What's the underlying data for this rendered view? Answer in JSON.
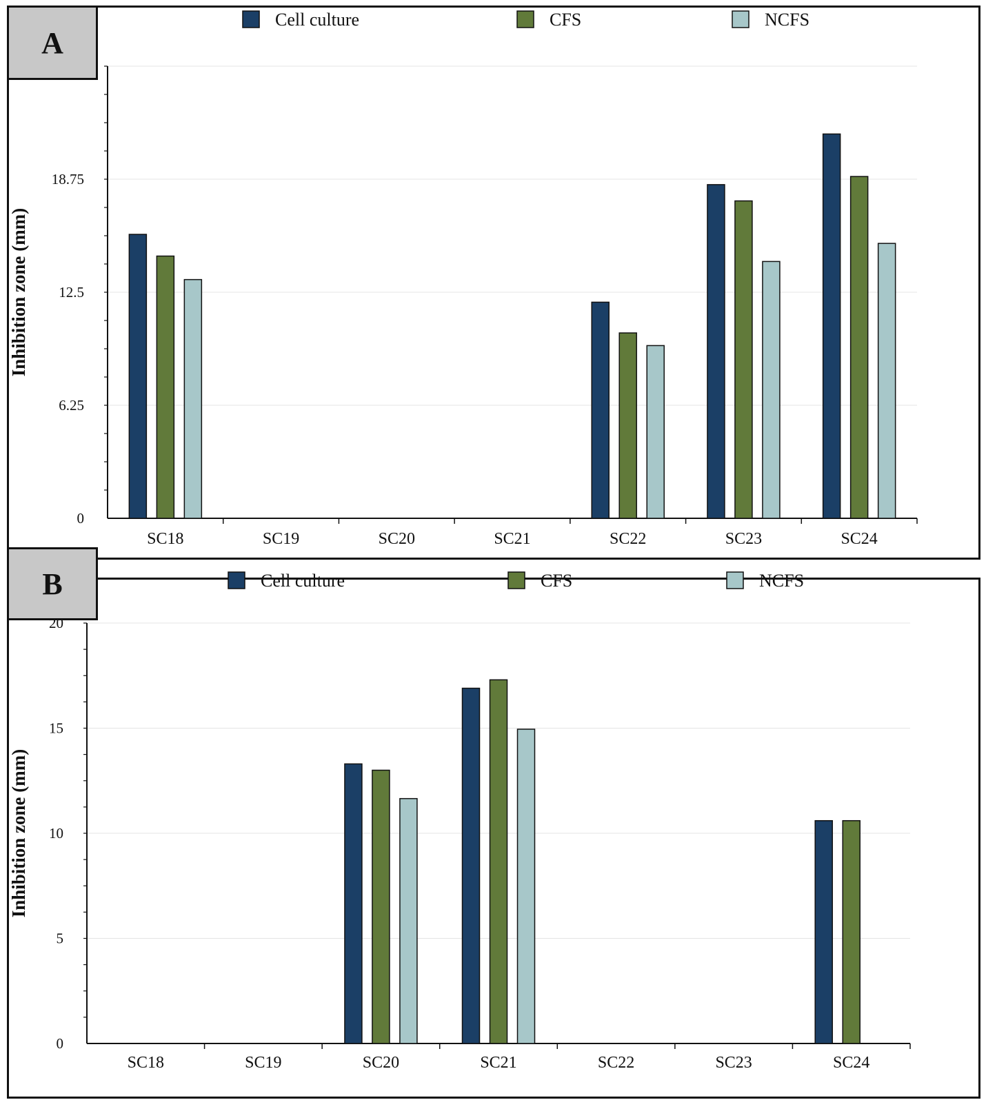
{
  "panels": {
    "a": {
      "tag": "A"
    },
    "b": {
      "tag": "B"
    }
  },
  "colors": {
    "Cell culture": "#1b3f66",
    "CFS": "#617a3a",
    "NCFS": "#a7c7c9"
  },
  "chart_data": [
    {
      "type": "bar",
      "panel": "A",
      "categories": [
        "SC18",
        "SC19",
        "SC20",
        "SC21",
        "SC22",
        "SC23",
        "SC24"
      ],
      "series": [
        {
          "name": "Cell culture",
          "values": [
            15.7,
            0,
            0,
            0,
            11.95,
            18.45,
            21.25
          ]
        },
        {
          "name": "CFS",
          "values": [
            14.5,
            0,
            0,
            0,
            10.25,
            17.55,
            18.9
          ]
        },
        {
          "name": "NCFS",
          "values": [
            13.2,
            0,
            0,
            0,
            9.55,
            14.2,
            15.2
          ]
        }
      ],
      "ylabel": "Inhibition zone (mm)",
      "xlabel": "",
      "ylim": [
        0,
        25
      ],
      "yticks": [
        0,
        6.25,
        12.5,
        18.75
      ],
      "ytick_labels": [
        "0",
        "6.25",
        "12.5",
        "18.75"
      ],
      "grid": true,
      "legend": "top"
    },
    {
      "type": "bar",
      "panel": "B",
      "categories": [
        "SC18",
        "SC19",
        "SC20",
        "SC21",
        "SC22",
        "SC23",
        "SC24"
      ],
      "series": [
        {
          "name": "Cell culture",
          "values": [
            0,
            0,
            13.3,
            16.9,
            0,
            0,
            10.6
          ]
        },
        {
          "name": "CFS",
          "values": [
            0,
            0,
            13.0,
            17.3,
            0,
            0,
            10.6
          ]
        },
        {
          "name": "NCFS",
          "values": [
            0,
            0,
            11.65,
            14.95,
            0,
            0,
            0
          ]
        }
      ],
      "ylabel": "Inhibition zone (mm)",
      "xlabel": "",
      "ylim": [
        0,
        20
      ],
      "yticks": [
        0,
        5,
        10,
        15,
        20
      ],
      "ytick_labels": [
        "0",
        "5",
        "10",
        "15",
        "20"
      ],
      "grid": true,
      "legend": "top"
    }
  ]
}
